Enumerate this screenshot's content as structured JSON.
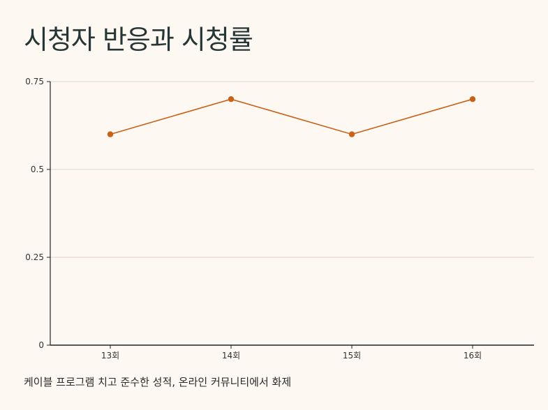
{
  "title": "시청자 반응과 시청률",
  "caption": "케이블 프로그램 치고 준수한 성적, 온라인 커뮤니티에서 화제",
  "chart_data": {
    "type": "line",
    "categories": [
      "13회",
      "14회",
      "15회",
      "16회"
    ],
    "series": [
      {
        "values": [
          0.6,
          0.7,
          0.6,
          0.7
        ]
      }
    ],
    "ylim": [
      0,
      0.75
    ],
    "yticks": [
      0,
      0.25,
      0.5,
      0.75
    ],
    "ytick_labels": [
      "0",
      "0.25",
      "0.5",
      "0.75"
    ],
    "grid": true,
    "legend": "none",
    "colors": {
      "line": "#c8611a",
      "grid": "#e3d4cc",
      "axis": "#222222"
    }
  }
}
